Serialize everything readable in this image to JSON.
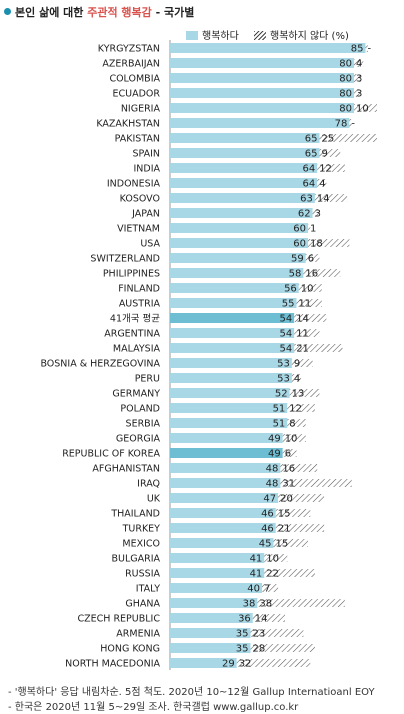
{
  "title": {
    "prefix": "본인 삶에 대한 ",
    "highlight": "주관적 행복감",
    "suffix": " - 국가별"
  },
  "legend": {
    "happy": "행복하다",
    "unhappy": "행복하지 않다 (%)"
  },
  "footnotes": [
    "- '행복하다' 응답 내림차순. 5점 척도. 2020년 10~12월 Gallup Internatioanl EOY",
    "- 한국은 2020년 11월 5~29일 조사. 한국갤럽 www.gallup.co.kr"
  ],
  "colors": {
    "bar": "#a8d8e6",
    "bar_highlight": "#6dbdd3",
    "hatch": "#444444",
    "title_accent": "#d9534f"
  },
  "chart_data": {
    "type": "bar",
    "orientation": "horizontal",
    "stacked": true,
    "title": "본인 삶에 대한 주관적 행복감 - 국가별",
    "xlim": [
      0,
      100
    ],
    "categories": [
      "KYRGYZSTAN",
      "AZERBAIJAN",
      "COLOMBIA",
      "ECUADOR",
      "NIGERIA",
      "KAZAKHSTAN",
      "PAKISTAN",
      "SPAIN",
      "INDIA",
      "INDONESIA",
      "KOSOVO",
      "JAPAN",
      "VIETNAM",
      "USA",
      "SWITZERLAND",
      "PHILIPPINES",
      "FINLAND",
      "AUSTRIA",
      "41개국 평균",
      "ARGENTINA",
      "MALAYSIA",
      "BOSNIA & HERZEGOVINA",
      "PERU",
      "GERMANY",
      "POLAND",
      "SERBIA",
      "GEORGIA",
      "REPUBLIC OF KOREA",
      "AFGHANISTAN",
      "IRAQ",
      "UK",
      "THAILAND",
      "TURKEY",
      "MEXICO",
      "BULGARIA",
      "RUSSIA",
      "ITALY",
      "GHANA",
      "CZECH REPUBLIC",
      "ARMENIA",
      "HONG KONG",
      "NORTH MACEDONIA"
    ],
    "highlighted": [
      "41개국 평균",
      "REPUBLIC OF KOREA"
    ],
    "series": [
      {
        "name": "행복하다",
        "values": [
          85,
          80,
          80,
          80,
          80,
          78,
          65,
          65,
          64,
          64,
          63,
          62,
          60,
          60,
          59,
          58,
          56,
          55,
          54,
          54,
          54,
          53,
          53,
          52,
          51,
          51,
          49,
          49,
          48,
          48,
          47,
          46,
          46,
          45,
          41,
          41,
          40,
          38,
          36,
          35,
          35,
          29
        ],
        "labels": [
          "85",
          "80",
          "80",
          "80",
          "80",
          "78",
          "65",
          "65",
          "64",
          "64",
          "63",
          "62",
          "60",
          "60",
          "59",
          "58",
          "56",
          "55",
          "54",
          "54",
          "54",
          "53",
          "53",
          "52",
          "51",
          "51",
          "49",
          "49",
          "48",
          "48",
          "47",
          "46",
          "46",
          "45",
          "41",
          "41",
          "40",
          "38",
          "36",
          "35",
          "35",
          "29"
        ]
      },
      {
        "name": "행복하지 않다 (%)",
        "values": [
          1,
          4,
          3,
          3,
          10,
          1,
          25,
          9,
          12,
          4,
          14,
          3,
          1,
          18,
          6,
          16,
          10,
          11,
          14,
          11,
          21,
          9,
          4,
          13,
          12,
          8,
          10,
          6,
          16,
          31,
          20,
          15,
          21,
          15,
          10,
          22,
          7,
          38,
          14,
          23,
          28,
          32
        ],
        "labels": [
          "-",
          "4",
          "3",
          "3",
          "10",
          "-",
          "25",
          "9",
          "12",
          "4",
          "14",
          "3",
          "1",
          "18",
          "6",
          "16",
          "10",
          "11",
          "14",
          "11",
          "21",
          "9",
          "4",
          "13",
          "12",
          "8",
          "10",
          "6",
          "16",
          "31",
          "20",
          "15",
          "21",
          "15",
          "10",
          "22",
          "7",
          "38",
          "14",
          "23",
          "28",
          "32"
        ]
      }
    ]
  }
}
